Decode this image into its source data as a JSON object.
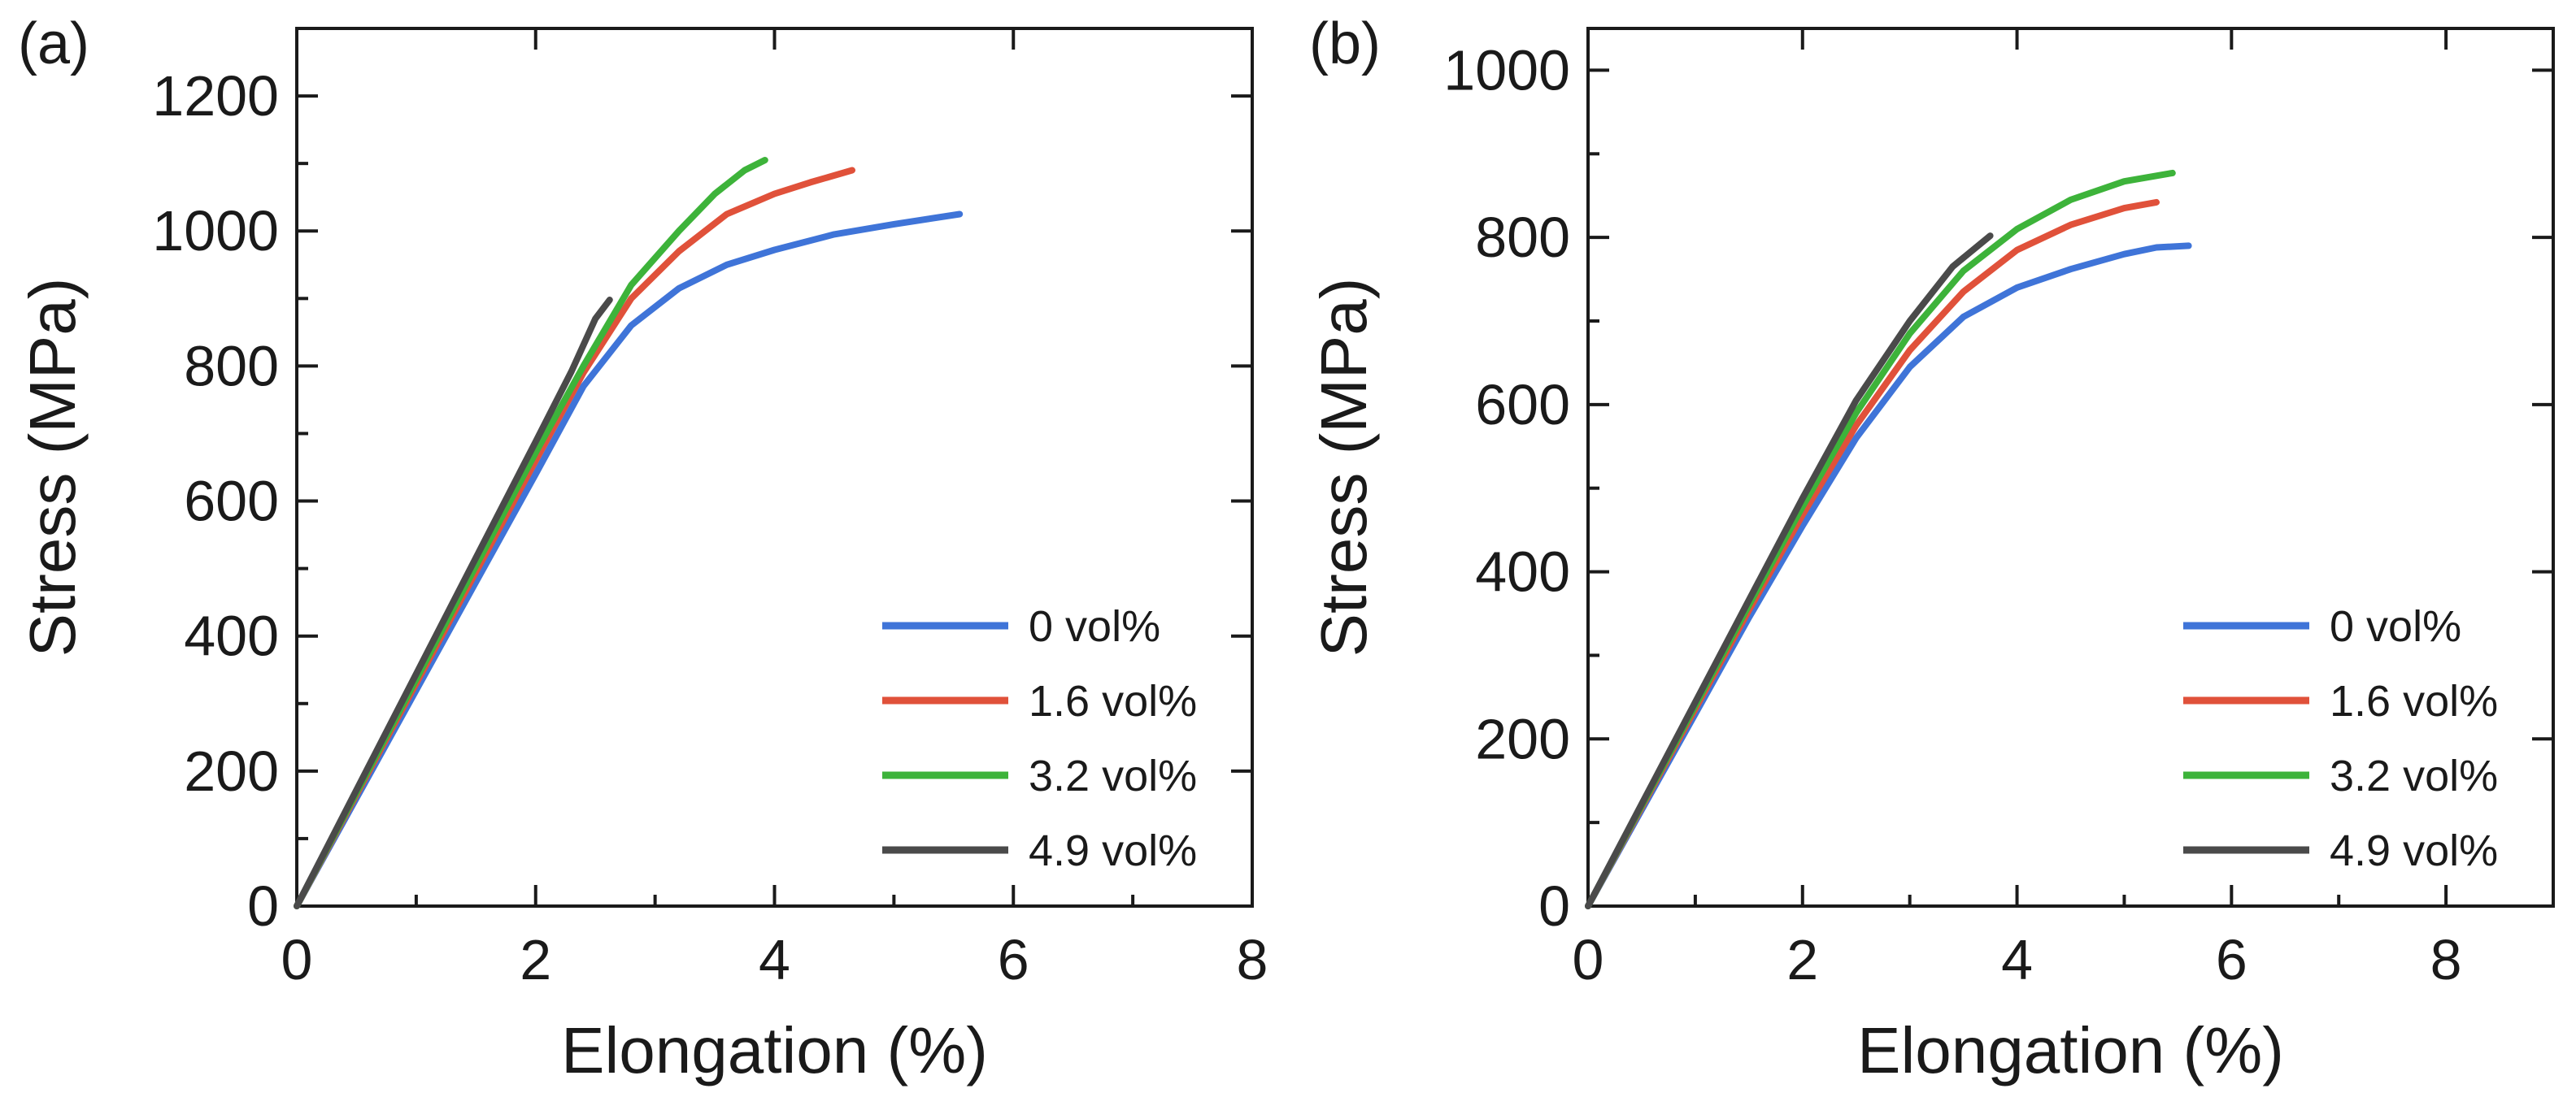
{
  "chart_data": [
    {
      "type": "line",
      "panel_label": "(a)",
      "xlabel": "Elongation (%)",
      "ylabel": "Stress (MPa)",
      "xlim": [
        0,
        8
      ],
      "ylim": [
        0,
        1300
      ],
      "xticks": [
        0,
        2,
        4,
        6,
        8
      ],
      "xtick_labels": [
        "0",
        "2",
        "4",
        "6",
        "8"
      ],
      "yticks": [
        0,
        200,
        400,
        600,
        800,
        1000,
        1200
      ],
      "ytick_labels": [
        "0",
        "200",
        "400",
        "600",
        "800",
        "1000",
        "1200"
      ],
      "legend_position": "bottom-right",
      "series": [
        {
          "name": "0 vol%",
          "color": "#3f74d8",
          "points": [
            [
              0,
              0
            ],
            [
              0.5,
              160
            ],
            [
              1.0,
              320
            ],
            [
              1.5,
              480
            ],
            [
              2.0,
              640
            ],
            [
              2.4,
              770
            ],
            [
              2.8,
              860
            ],
            [
              3.2,
              915
            ],
            [
              3.6,
              950
            ],
            [
              4.0,
              972
            ],
            [
              4.5,
              995
            ],
            [
              5.0,
              1010
            ],
            [
              5.55,
              1025
            ]
          ]
        },
        {
          "name": "1.6 vol%",
          "color": "#e0513a",
          "points": [
            [
              0,
              0
            ],
            [
              0.5,
              165
            ],
            [
              1.0,
              330
            ],
            [
              1.5,
              495
            ],
            [
              2.0,
              660
            ],
            [
              2.4,
              790
            ],
            [
              2.8,
              900
            ],
            [
              3.2,
              970
            ],
            [
              3.6,
              1025
            ],
            [
              4.0,
              1055
            ],
            [
              4.3,
              1072
            ],
            [
              4.65,
              1090
            ]
          ]
        },
        {
          "name": "3.2 vol%",
          "color": "#3db33a",
          "points": [
            [
              0,
              0
            ],
            [
              0.5,
              168
            ],
            [
              1.0,
              336
            ],
            [
              1.5,
              504
            ],
            [
              2.0,
              672
            ],
            [
              2.4,
              800
            ],
            [
              2.8,
              920
            ],
            [
              3.2,
              1000
            ],
            [
              3.5,
              1055
            ],
            [
              3.75,
              1090
            ],
            [
              3.92,
              1105
            ]
          ]
        },
        {
          "name": "4.9 vol%",
          "color": "#4a4a4a",
          "points": [
            [
              0,
              0
            ],
            [
              0.5,
              172
            ],
            [
              1.0,
              344
            ],
            [
              1.5,
              516
            ],
            [
              2.0,
              688
            ],
            [
              2.3,
              792
            ],
            [
              2.5,
              870
            ],
            [
              2.62,
              898
            ]
          ]
        }
      ]
    },
    {
      "type": "line",
      "panel_label": "(b)",
      "xlabel": "Elongation (%)",
      "ylabel": "Stress (MPa)",
      "xlim": [
        0,
        9
      ],
      "ylim": [
        0,
        1050
      ],
      "xticks": [
        0,
        2,
        4,
        6,
        8
      ],
      "xtick_labels": [
        "0",
        "2",
        "4",
        "6",
        "8"
      ],
      "yticks": [
        0,
        200,
        400,
        600,
        800,
        1000
      ],
      "ytick_labels": [
        "0",
        "200",
        "400",
        "600",
        "800",
        "1000"
      ],
      "legend_position": "bottom-right",
      "series": [
        {
          "name": "0 vol%",
          "color": "#3f74d8",
          "points": [
            [
              0,
              0
            ],
            [
              0.5,
              115
            ],
            [
              1.0,
              230
            ],
            [
              1.5,
              345
            ],
            [
              2.0,
              455
            ],
            [
              2.5,
              560
            ],
            [
              3.0,
              645
            ],
            [
              3.5,
              705
            ],
            [
              4.0,
              740
            ],
            [
              4.5,
              762
            ],
            [
              5.0,
              780
            ],
            [
              5.3,
              788
            ],
            [
              5.6,
              790
            ]
          ]
        },
        {
          "name": "1.6 vol%",
          "color": "#e0513a",
          "points": [
            [
              0,
              0
            ],
            [
              0.5,
              118
            ],
            [
              1.0,
              236
            ],
            [
              1.5,
              354
            ],
            [
              2.0,
              468
            ],
            [
              2.5,
              575
            ],
            [
              3.0,
              665
            ],
            [
              3.5,
              735
            ],
            [
              4.0,
              785
            ],
            [
              4.5,
              815
            ],
            [
              5.0,
              835
            ],
            [
              5.3,
              842
            ]
          ]
        },
        {
          "name": "3.2 vol%",
          "color": "#3db33a",
          "points": [
            [
              0,
              0
            ],
            [
              0.5,
              120
            ],
            [
              1.0,
              240
            ],
            [
              1.5,
              360
            ],
            [
              2.0,
              478
            ],
            [
              2.5,
              590
            ],
            [
              3.0,
              685
            ],
            [
              3.5,
              760
            ],
            [
              4.0,
              810
            ],
            [
              4.5,
              845
            ],
            [
              5.0,
              867
            ],
            [
              5.45,
              877
            ]
          ]
        },
        {
          "name": "4.9 vol%",
          "color": "#4a4a4a",
          "points": [
            [
              0,
              0
            ],
            [
              0.5,
              122
            ],
            [
              1.0,
              244
            ],
            [
              1.5,
              366
            ],
            [
              2.0,
              488
            ],
            [
              2.5,
              605
            ],
            [
              3.0,
              700
            ],
            [
              3.4,
              765
            ],
            [
              3.75,
              802
            ]
          ]
        }
      ]
    }
  ]
}
